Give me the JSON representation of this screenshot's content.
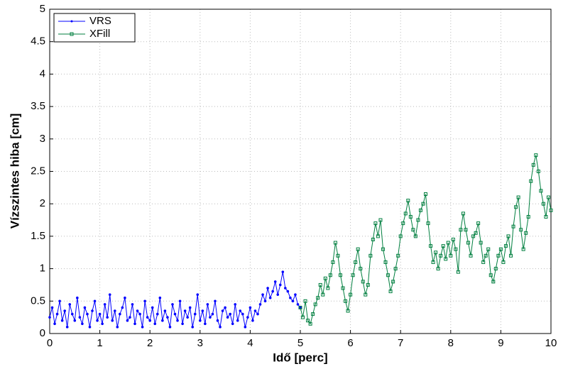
{
  "chart_data": {
    "type": "line",
    "xlabel": "Idő [perc]",
    "ylabel": "Vízszintes hiba [cm]",
    "xlim": [
      0,
      10
    ],
    "xticks": [
      0,
      1,
      2,
      3,
      4,
      5,
      6,
      7,
      8,
      9,
      10
    ],
    "ylim": [
      0,
      5
    ],
    "yticks": [
      0,
      0.5,
      1,
      1.5,
      2,
      2.5,
      3,
      3.5,
      4,
      4.5,
      5
    ],
    "grid": true,
    "legend": "upper-left",
    "series": [
      {
        "name": "VRS",
        "color": "#0000ff",
        "marker": "dot",
        "x": [
          0,
          0.05,
          0.1,
          0.15,
          0.2,
          0.25,
          0.3,
          0.35,
          0.4,
          0.45,
          0.5,
          0.55,
          0.6,
          0.65,
          0.7,
          0.75,
          0.8,
          0.85,
          0.9,
          0.95,
          1,
          1.05,
          1.1,
          1.15,
          1.2,
          1.25,
          1.3,
          1.35,
          1.4,
          1.45,
          1.5,
          1.55,
          1.6,
          1.65,
          1.7,
          1.75,
          1.8,
          1.85,
          1.9,
          1.95,
          2,
          2.05,
          2.1,
          2.15,
          2.2,
          2.25,
          2.3,
          2.35,
          2.4,
          2.45,
          2.5,
          2.55,
          2.6,
          2.65,
          2.7,
          2.75,
          2.8,
          2.85,
          2.9,
          2.95,
          3,
          3.05,
          3.1,
          3.15,
          3.2,
          3.25,
          3.3,
          3.35,
          3.4,
          3.45,
          3.5,
          3.55,
          3.6,
          3.65,
          3.7,
          3.75,
          3.8,
          3.85,
          3.9,
          3.95,
          4,
          4.05,
          4.1,
          4.15,
          4.2,
          4.25,
          4.3,
          4.35,
          4.4,
          4.45,
          4.5,
          4.55,
          4.6,
          4.65,
          4.7,
          4.75,
          4.8,
          4.85,
          4.9,
          4.95,
          5
        ],
        "values": [
          0.25,
          0.4,
          0.15,
          0.3,
          0.5,
          0.2,
          0.35,
          0.1,
          0.45,
          0.3,
          0.2,
          0.55,
          0.25,
          0.15,
          0.4,
          0.3,
          0.1,
          0.35,
          0.5,
          0.2,
          0.3,
          0.15,
          0.45,
          0.25,
          0.6,
          0.2,
          0.35,
          0.1,
          0.3,
          0.4,
          0.55,
          0.2,
          0.25,
          0.45,
          0.15,
          0.35,
          0.3,
          0.1,
          0.5,
          0.25,
          0.2,
          0.4,
          0.15,
          0.3,
          0.55,
          0.2,
          0.35,
          0.25,
          0.1,
          0.45,
          0.3,
          0.2,
          0.5,
          0.15,
          0.35,
          0.25,
          0.4,
          0.1,
          0.3,
          0.6,
          0.2,
          0.35,
          0.15,
          0.45,
          0.25,
          0.3,
          0.5,
          0.2,
          0.1,
          0.35,
          0.4,
          0.25,
          0.3,
          0.15,
          0.45,
          0.2,
          0.35,
          0.3,
          0.1,
          0.25,
          0.4,
          0.2,
          0.35,
          0.3,
          0.45,
          0.6,
          0.5,
          0.7,
          0.55,
          0.65,
          0.8,
          0.6,
          0.75,
          0.95,
          0.7,
          0.65,
          0.55,
          0.5,
          0.6,
          0.45,
          0.4
        ]
      },
      {
        "name": "XFill",
        "color": "#007f3f",
        "marker": "square",
        "x": [
          5,
          5.05,
          5.1,
          5.15,
          5.2,
          5.25,
          5.3,
          5.35,
          5.4,
          5.45,
          5.5,
          5.55,
          5.6,
          5.65,
          5.7,
          5.75,
          5.8,
          5.85,
          5.9,
          5.95,
          6,
          6.05,
          6.1,
          6.15,
          6.2,
          6.25,
          6.3,
          6.35,
          6.4,
          6.45,
          6.5,
          6.55,
          6.6,
          6.65,
          6.7,
          6.75,
          6.8,
          6.85,
          6.9,
          6.95,
          7,
          7.05,
          7.1,
          7.15,
          7.2,
          7.25,
          7.3,
          7.35,
          7.4,
          7.45,
          7.5,
          7.55,
          7.6,
          7.65,
          7.7,
          7.75,
          7.8,
          7.85,
          7.9,
          7.95,
          8,
          8.05,
          8.1,
          8.15,
          8.2,
          8.25,
          8.3,
          8.35,
          8.4,
          8.45,
          8.5,
          8.55,
          8.6,
          8.65,
          8.7,
          8.75,
          8.8,
          8.85,
          8.9,
          8.95,
          9,
          9.05,
          9.1,
          9.15,
          9.2,
          9.25,
          9.3,
          9.35,
          9.4,
          9.45,
          9.5,
          9.55,
          9.6,
          9.65,
          9.7,
          9.75,
          9.8,
          9.85,
          9.9,
          9.95,
          10
        ],
        "values": [
          0.4,
          0.25,
          0.5,
          0.2,
          0.15,
          0.3,
          0.45,
          0.55,
          0.75,
          0.6,
          0.85,
          0.7,
          0.9,
          1.1,
          1.4,
          1.2,
          0.9,
          0.7,
          0.5,
          0.35,
          0.6,
          0.9,
          1.1,
          1.3,
          1.0,
          0.8,
          0.6,
          0.75,
          1.2,
          1.45,
          1.7,
          1.5,
          1.75,
          1.3,
          1.1,
          0.9,
          0.65,
          0.8,
          1.0,
          1.2,
          1.5,
          1.7,
          1.85,
          2.05,
          1.8,
          1.6,
          1.5,
          1.75,
          1.9,
          2.0,
          2.15,
          1.7,
          1.35,
          1.1,
          1.25,
          1.0,
          1.2,
          1.35,
          1.15,
          1.4,
          1.2,
          1.45,
          1.3,
          0.95,
          1.6,
          1.85,
          1.6,
          1.4,
          1.2,
          1.5,
          1.55,
          1.7,
          1.4,
          1.1,
          1.2,
          1.3,
          0.9,
          0.8,
          1.0,
          1.2,
          1.3,
          1.1,
          1.35,
          1.5,
          1.2,
          1.65,
          1.95,
          2.1,
          1.6,
          1.3,
          1.55,
          1.8,
          2.35,
          2.6,
          2.75,
          2.5,
          2.2,
          2.0,
          1.8,
          2.1,
          1.9
        ]
      }
    ]
  }
}
